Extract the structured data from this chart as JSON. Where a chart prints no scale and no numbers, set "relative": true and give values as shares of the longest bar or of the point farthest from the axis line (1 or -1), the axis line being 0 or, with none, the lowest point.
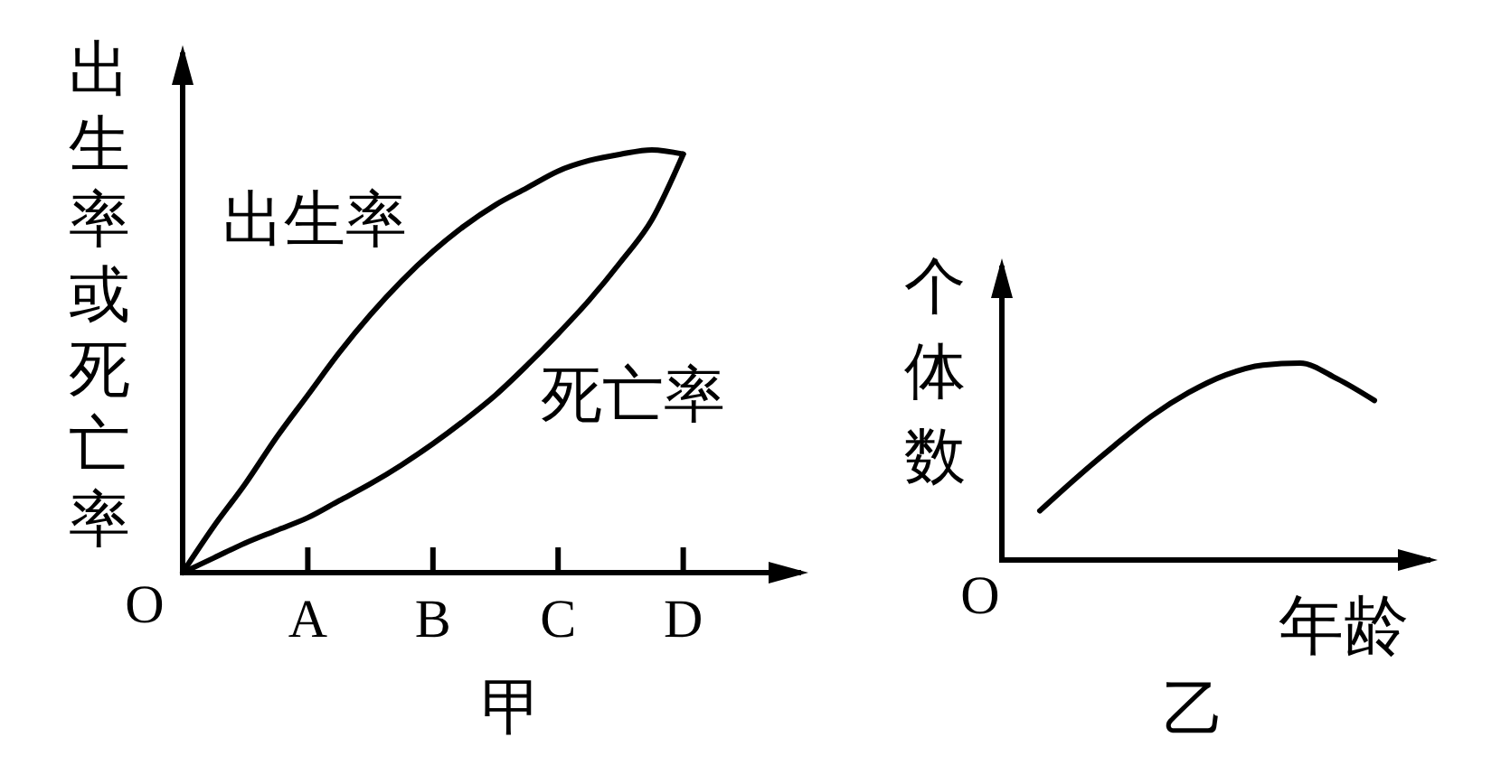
{
  "chart_data": [
    {
      "type": "line",
      "title": "甲",
      "ylabel": "出生率或死亡率",
      "relative": true,
      "categories": [
        null,
        null,
        null,
        null,
        "A",
        null,
        null,
        null,
        "B",
        null,
        null,
        null,
        "C",
        null,
        null,
        null,
        "D",
        null,
        null,
        null,
        null
      ],
      "annotations": [
        "O"
      ],
      "line_style": "solid",
      "series": [
        {
          "name": "出生率",
          "color": "#000000",
          "values": [
            0,
            0.11,
            0.21,
            0.32,
            0.42,
            0.52,
            0.61,
            0.69,
            0.76,
            0.82,
            0.87,
            0.91,
            0.95,
            0.975,
            0.99,
            1,
            0.99,
            null,
            null,
            null,
            null
          ]
        },
        {
          "name": "死亡率",
          "color": "#000000",
          "values": [
            0,
            0.035,
            0.07,
            0.1,
            0.13,
            0.17,
            0.21,
            0.255,
            0.305,
            0.36,
            0.42,
            0.49,
            0.565,
            0.645,
            0.735,
            0.835,
            0.99,
            null,
            null,
            null,
            null
          ]
        }
      ]
    },
    {
      "type": "line",
      "title": "乙",
      "xlabel": "年龄",
      "ylabel": "个体数",
      "relative": true,
      "categories": [
        null,
        null,
        null,
        null,
        null,
        null,
        null,
        null,
        null,
        null
      ],
      "annotations": [
        "O"
      ],
      "line_style": "solid",
      "series": [
        {
          "color": "#000000",
          "values": [
            0.25,
            0.42,
            0.58,
            0.73,
            0.85,
            0.94,
            0.99,
            1,
            0.92,
            0.81
          ]
        }
      ]
    }
  ]
}
